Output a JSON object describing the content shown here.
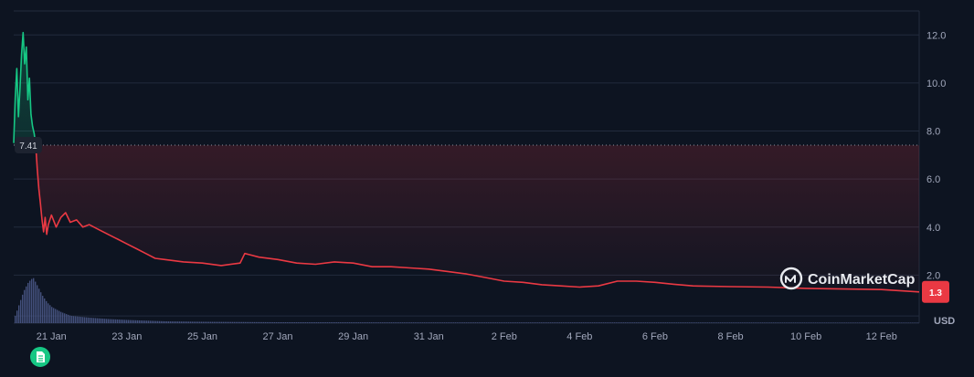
{
  "chart_data": {
    "type": "area",
    "title": "",
    "xlabel": "",
    "ylabel": "",
    "unit": "USD",
    "baseline_label": "7.41",
    "last_value_label": "1.3",
    "watermark": "CoinMarketCap",
    "ylim": [
      0,
      13
    ],
    "yticks": [
      2.0,
      4.0,
      6.0,
      8.0,
      10.0,
      12.0
    ],
    "ytick_labels": [
      "2.0",
      "4.0",
      "6.0",
      "8.0",
      "10.0",
      "12.0"
    ],
    "xlim": [
      "2025-01-20",
      "2025-02-13"
    ],
    "xticks": [
      {
        "date": "2025-01-21",
        "label": "21 Jan"
      },
      {
        "date": "2025-01-23",
        "label": "23 Jan"
      },
      {
        "date": "2025-01-25",
        "label": "25 Jan"
      },
      {
        "date": "2025-01-27",
        "label": "27 Jan"
      },
      {
        "date": "2025-01-29",
        "label": "29 Jan"
      },
      {
        "date": "2025-01-31",
        "label": "31 Jan"
      },
      {
        "date": "2025-02-02",
        "label": "2 Feb"
      },
      {
        "date": "2025-02-04",
        "label": "4 Feb"
      },
      {
        "date": "2025-02-06",
        "label": "6 Feb"
      },
      {
        "date": "2025-02-08",
        "label": "8 Feb"
      },
      {
        "date": "2025-02-10",
        "label": "10 Feb"
      },
      {
        "date": "2025-02-12",
        "label": "12 Feb"
      }
    ],
    "baseline": 7.41,
    "grid": true,
    "legend": "none",
    "colors": {
      "up": "#16c784",
      "down": "#ea3943",
      "background": "#0d1421",
      "grid": "#222b3d",
      "volume": "#4d5a8c",
      "badge": "#ea3943"
    },
    "series": [
      {
        "points": [
          [
            "2025-01-20 00:00",
            7.5
          ],
          [
            "2025-01-20 01:00",
            9.4
          ],
          [
            "2025-01-20 02:00",
            10.6
          ],
          [
            "2025-01-20 03:00",
            8.6
          ],
          [
            "2025-01-20 04:00",
            9.8
          ],
          [
            "2025-01-20 05:00",
            11.2
          ],
          [
            "2025-01-20 06:00",
            12.1
          ],
          [
            "2025-01-20 07:00",
            10.8
          ],
          [
            "2025-01-20 08:00",
            11.5
          ],
          [
            "2025-01-20 09:00",
            9.3
          ],
          [
            "2025-01-20 10:00",
            10.2
          ],
          [
            "2025-01-20 11:00",
            8.7
          ],
          [
            "2025-01-20 12:00",
            8.2
          ],
          [
            "2025-01-20 13:00",
            7.9
          ],
          [
            "2025-01-20 14:00",
            7.4
          ],
          [
            "2025-01-20 15:00",
            6.4
          ],
          [
            "2025-01-20 16:00",
            5.6
          ],
          [
            "2025-01-20 17:00",
            5.0
          ],
          [
            "2025-01-20 18:00",
            4.3
          ],
          [
            "2025-01-20 19:00",
            3.8
          ],
          [
            "2025-01-20 20:00",
            4.4
          ],
          [
            "2025-01-20 21:00",
            3.7
          ],
          [
            "2025-01-20 22:00",
            4.1
          ],
          [
            "2025-01-21 00:00",
            4.5
          ],
          [
            "2025-01-21 03:00",
            4.0
          ],
          [
            "2025-01-21 06:00",
            4.4
          ],
          [
            "2025-01-21 09:00",
            4.6
          ],
          [
            "2025-01-21 12:00",
            4.2
          ],
          [
            "2025-01-21 16:00",
            4.3
          ],
          [
            "2025-01-21 20:00",
            4.0
          ],
          [
            "2025-01-22 00:00",
            4.1
          ],
          [
            "2025-01-22 06:00",
            3.9
          ],
          [
            "2025-01-22 12:00",
            3.7
          ],
          [
            "2025-01-22 18:00",
            3.5
          ],
          [
            "2025-01-23 00:00",
            3.3
          ],
          [
            "2025-01-23 06:00",
            3.1
          ],
          [
            "2025-01-23 12:00",
            2.9
          ],
          [
            "2025-01-23 18:00",
            2.7
          ],
          [
            "2025-01-24 00:00",
            2.65
          ],
          [
            "2025-01-24 12:00",
            2.55
          ],
          [
            "2025-01-25 00:00",
            2.5
          ],
          [
            "2025-01-25 12:00",
            2.4
          ],
          [
            "2025-01-26 00:00",
            2.5
          ],
          [
            "2025-01-26 03:00",
            2.9
          ],
          [
            "2025-01-26 06:00",
            2.85
          ],
          [
            "2025-01-26 12:00",
            2.75
          ],
          [
            "2025-01-27 00:00",
            2.65
          ],
          [
            "2025-01-27 12:00",
            2.5
          ],
          [
            "2025-01-28 00:00",
            2.45
          ],
          [
            "2025-01-28 12:00",
            2.55
          ],
          [
            "2025-01-29 00:00",
            2.5
          ],
          [
            "2025-01-29 12:00",
            2.35
          ],
          [
            "2025-01-30 00:00",
            2.35
          ],
          [
            "2025-01-30 12:00",
            2.3
          ],
          [
            "2025-01-31 00:00",
            2.25
          ],
          [
            "2025-01-31 12:00",
            2.15
          ],
          [
            "2025-02-01 00:00",
            2.05
          ],
          [
            "2025-02-01 12:00",
            1.9
          ],
          [
            "2025-02-02 00:00",
            1.75
          ],
          [
            "2025-02-02 12:00",
            1.7
          ],
          [
            "2025-02-03 00:00",
            1.6
          ],
          [
            "2025-02-03 12:00",
            1.55
          ],
          [
            "2025-02-04 00:00",
            1.5
          ],
          [
            "2025-02-04 12:00",
            1.55
          ],
          [
            "2025-02-05 00:00",
            1.75
          ],
          [
            "2025-02-05 12:00",
            1.75
          ],
          [
            "2025-02-06 00:00",
            1.7
          ],
          [
            "2025-02-06 12:00",
            1.62
          ],
          [
            "2025-02-07 00:00",
            1.55
          ],
          [
            "2025-02-08 00:00",
            1.52
          ],
          [
            "2025-02-09 00:00",
            1.5
          ],
          [
            "2025-02-10 00:00",
            1.45
          ],
          [
            "2025-02-11 00:00",
            1.42
          ],
          [
            "2025-02-12 00:00",
            1.4
          ],
          [
            "2025-02-13 00:00",
            1.3
          ]
        ]
      }
    ],
    "volume": [
      [
        "2025-01-20 00:00",
        1
      ],
      [
        "2025-01-20 03:00",
        4
      ],
      [
        "2025-01-20 06:00",
        7
      ],
      [
        "2025-01-20 09:00",
        9
      ],
      [
        "2025-01-20 12:00",
        10
      ],
      [
        "2025-01-20 15:00",
        8
      ],
      [
        "2025-01-20 18:00",
        6
      ],
      [
        "2025-01-20 21:00",
        4.5
      ],
      [
        "2025-01-21 00:00",
        3.5
      ],
      [
        "2025-01-21 06:00",
        2.4
      ],
      [
        "2025-01-21 12:00",
        1.6
      ],
      [
        "2025-01-22 00:00",
        1.2
      ],
      [
        "2025-01-22 12:00",
        0.9
      ],
      [
        "2025-01-23 00:00",
        0.7
      ],
      [
        "2025-01-24 00:00",
        0.4
      ],
      [
        "2025-01-25 00:00",
        0.3
      ],
      [
        "2025-01-27 00:00",
        0.2
      ],
      [
        "2025-01-31 00:00",
        0.15
      ],
      [
        "2025-02-05 00:00",
        0.15
      ],
      [
        "2025-02-13 00:00",
        0.1
      ]
    ]
  }
}
